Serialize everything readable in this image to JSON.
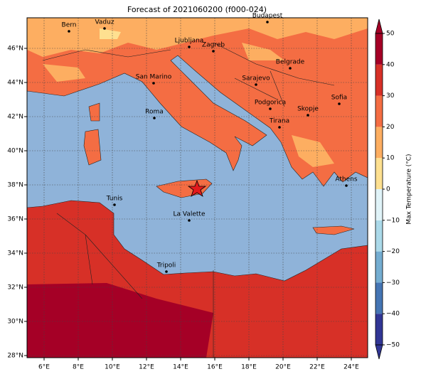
{
  "title": "Forecast of 2021060200 (f000-024)",
  "x_ticks": [
    {
      "value": 6,
      "label": "6°E"
    },
    {
      "value": 8,
      "label": "8°E"
    },
    {
      "value": 10,
      "label": "10°E"
    },
    {
      "value": 12,
      "label": "12°E"
    },
    {
      "value": 14,
      "label": "14°E"
    },
    {
      "value": 16,
      "label": "16°E"
    },
    {
      "value": 18,
      "label": "18°E"
    },
    {
      "value": 20,
      "label": "20°E"
    },
    {
      "value": 22,
      "label": "22°E"
    },
    {
      "value": 24,
      "label": "24°E"
    }
  ],
  "y_ticks": [
    {
      "value": 28,
      "label": "28°N"
    },
    {
      "value": 30,
      "label": "30°N"
    },
    {
      "value": 32,
      "label": "32°N"
    },
    {
      "value": 34,
      "label": "34°N"
    },
    {
      "value": 36,
      "label": "36°N"
    },
    {
      "value": 38,
      "label": "38°N"
    },
    {
      "value": 40,
      "label": "40°N"
    },
    {
      "value": 42,
      "label": "42°N"
    },
    {
      "value": 44,
      "label": "44°N"
    },
    {
      "value": 46,
      "label": "46°N"
    }
  ],
  "cities": [
    "Bern",
    "Vaduz",
    "Budapest",
    "Ljubljana",
    "Zagreb",
    "Belgrade",
    "San Marino",
    "Sarajevo",
    "Sofia",
    "Podgorica",
    "Skopje",
    "Roma",
    "Tirana",
    "Athens",
    "Tunis",
    "La Valette",
    "Tripoli"
  ],
  "colorbar": {
    "label": "Max Temperature (°C)",
    "ticks": [
      {
        "value": -50,
        "label": "−50"
      },
      {
        "value": -40,
        "label": "−40"
      },
      {
        "value": -30,
        "label": "−30"
      },
      {
        "value": -20,
        "label": "−20"
      },
      {
        "value": -10,
        "label": "−10"
      },
      0,
      10,
      20,
      30,
      40,
      50
    ],
    "colors": [
      "#313695",
      "#4575b4",
      "#74add1",
      "#abd9e9",
      "#e0f3f8",
      "#fee090",
      "#fdae61",
      "#f46d43",
      "#d73027",
      "#a50026"
    ]
  }
}
